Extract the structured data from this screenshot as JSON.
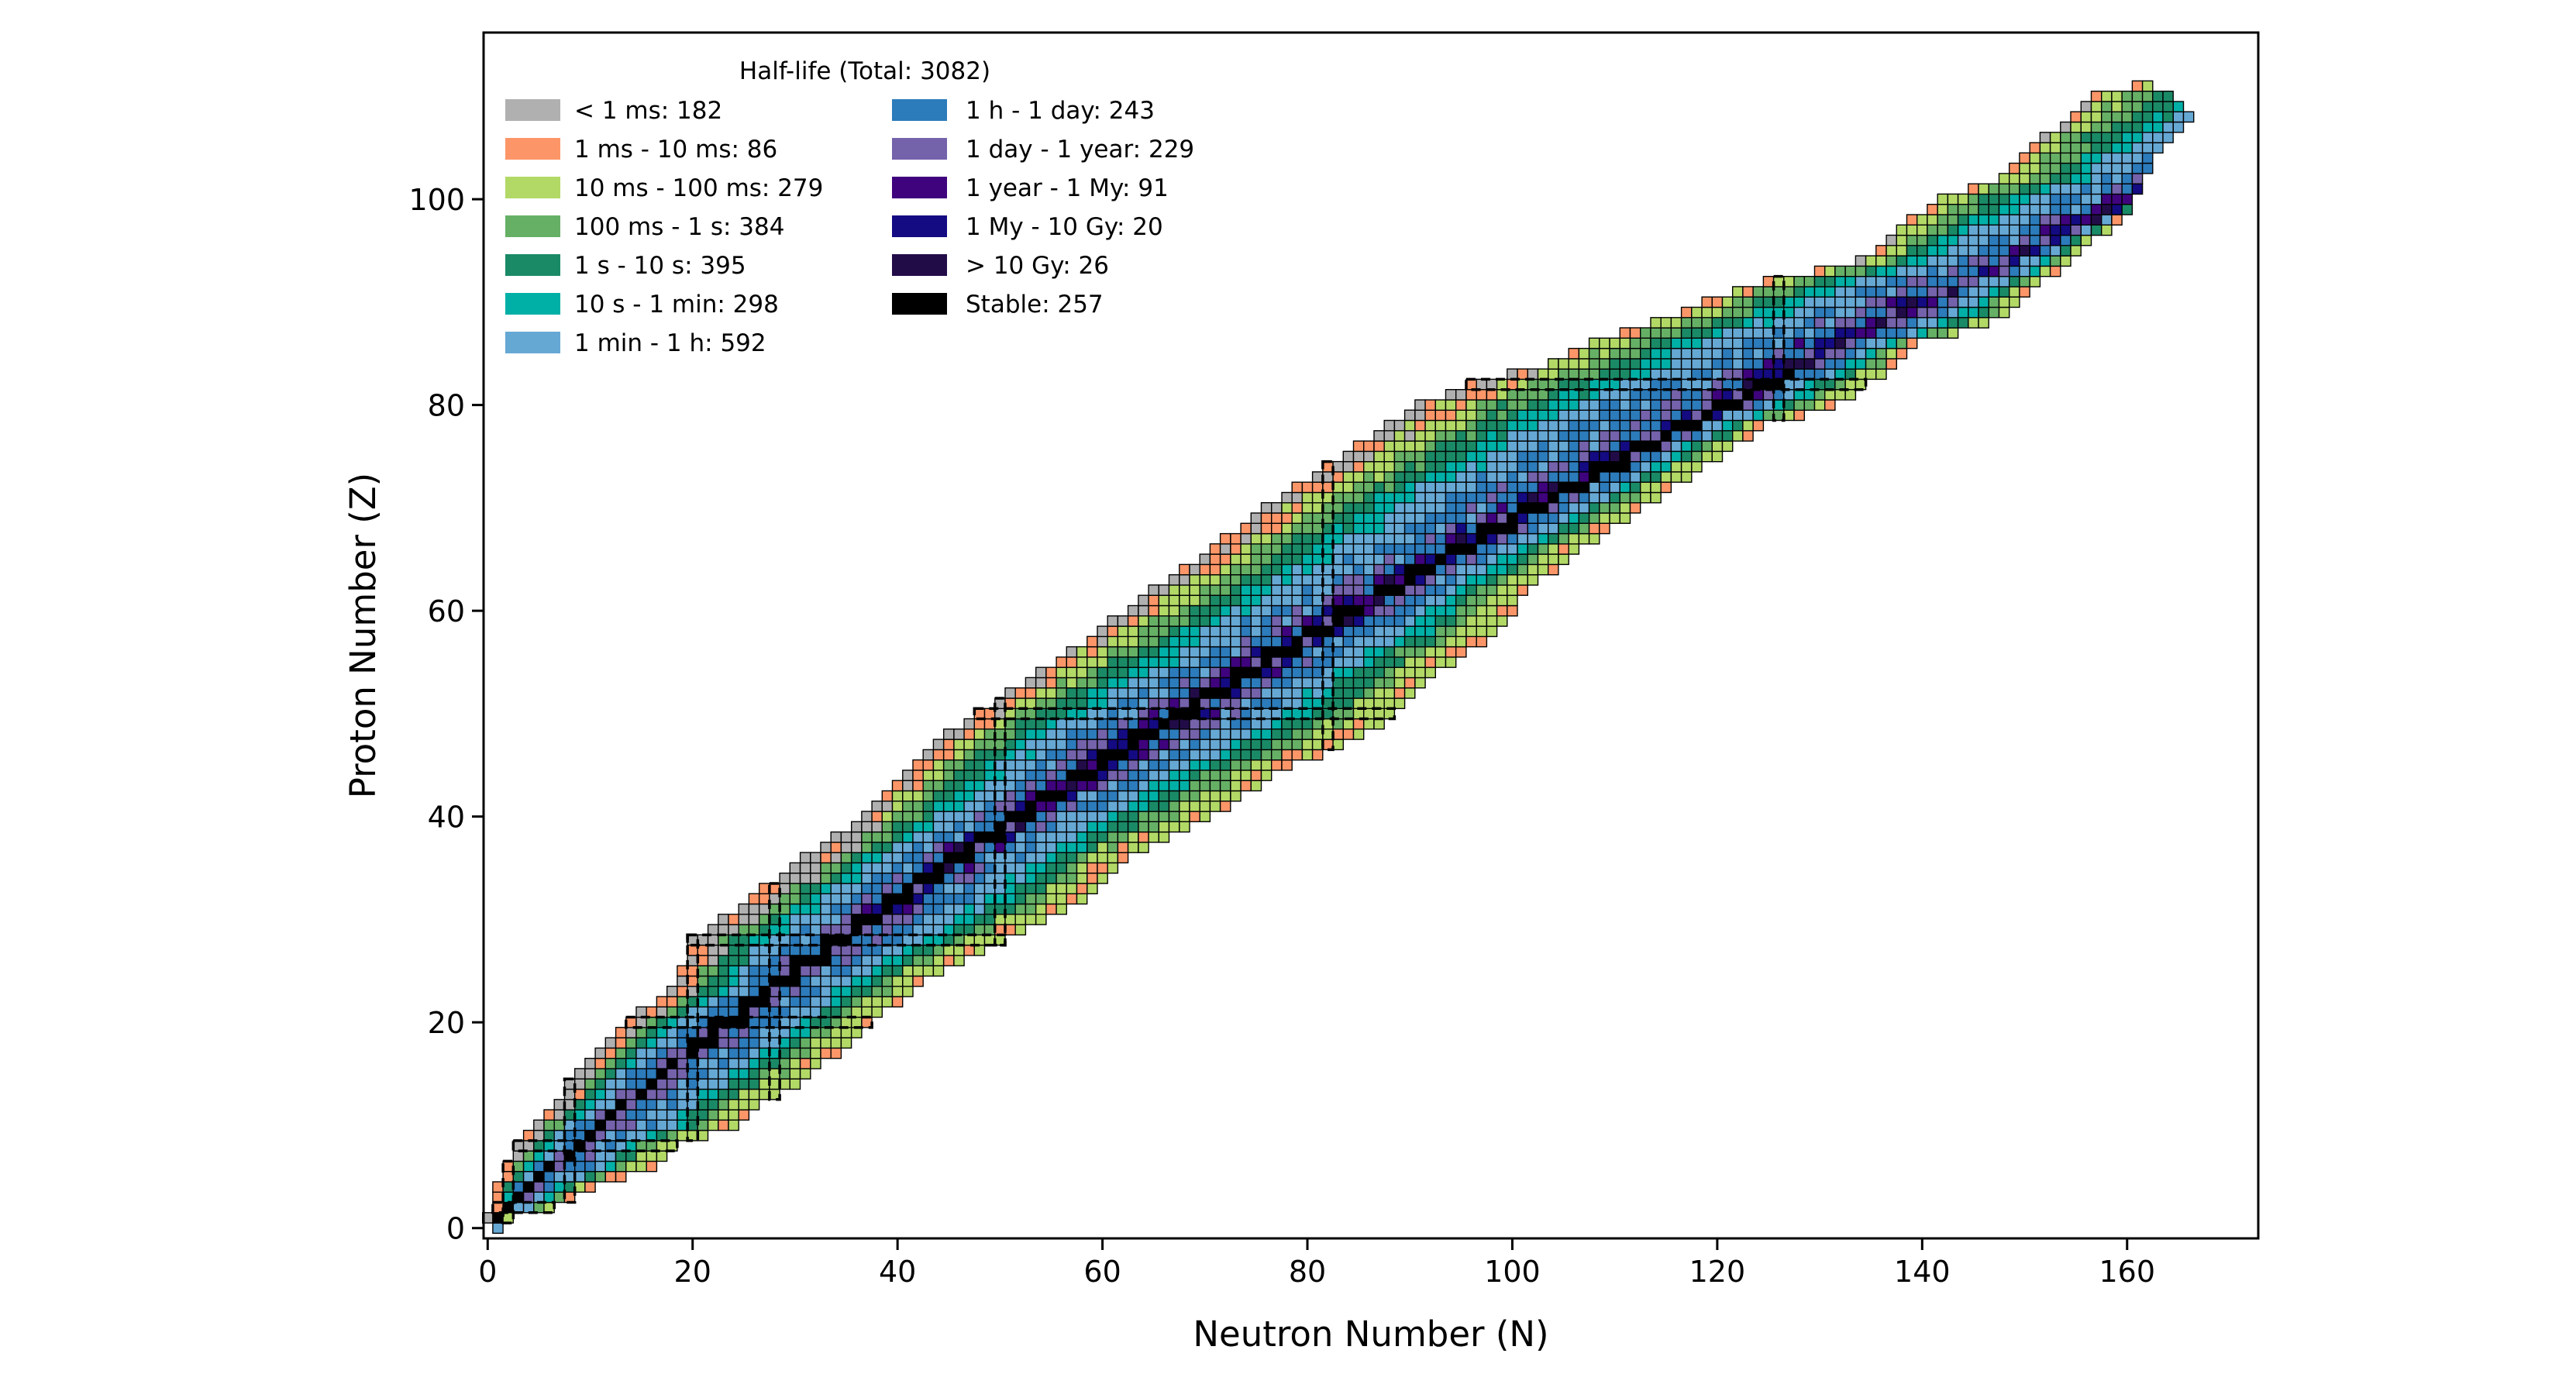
{
  "chart_data": {
    "type": "heatmap",
    "title": "",
    "xlabel": "Neutron Number (N)",
    "ylabel": "Proton Number (Z)",
    "xlim": [
      -0.4,
      172.8
    ],
    "ylim": [
      -1,
      116.2
    ],
    "xticks": [
      0,
      20,
      40,
      60,
      80,
      100,
      120,
      140,
      160
    ],
    "yticks": [
      0,
      20,
      40,
      60,
      80,
      100
    ],
    "xtick_labels": [
      "0",
      "20",
      "40",
      "60",
      "80",
      "100",
      "120",
      "140",
      "160"
    ],
    "ytick_labels": [
      "0",
      "20",
      "40",
      "60",
      "80",
      "100"
    ],
    "legend": {
      "title": "Half-life (Total: 3082)",
      "placement": "top-left",
      "entries": [
        {
          "label": "< 1 ms: 182",
          "color": "#b0b0b0"
        },
        {
          "label": "1 ms - 10 ms: 86",
          "color": "#fc9668"
        },
        {
          "label": "10 ms - 100 ms: 279",
          "color": "#b2d966"
        },
        {
          "label": "100 ms - 1 s: 384",
          "color": "#66b066"
        },
        {
          "label": "1 s - 10 s: 395",
          "color": "#1a8a66"
        },
        {
          "label": "10 s - 1 min: 298",
          "color": "#00b0a6"
        },
        {
          "label": "1 min - 1 h: 592",
          "color": "#66a8d4"
        },
        {
          "label": "1 h - 1 day: 243",
          "color": "#2c7bbb"
        },
        {
          "label": "1 day - 1 year: 229",
          "color": "#7462ab"
        },
        {
          "label": "1 year - 1 My: 91",
          "color": "#3f037d"
        },
        {
          "label": "1 My - 10 Gy: 20",
          "color": "#140a82"
        },
        {
          "label": "> 10 Gy: 26",
          "color": "#220c48"
        },
        {
          "label": "Stable: 257",
          "color": "#000000"
        }
      ]
    },
    "nuclide_region": {
      "note_units": "proton number Z vs neutron number N (data units)",
      "proton_rich_edge": [
        [
          0,
          1
        ],
        [
          1,
          0
        ],
        [
          2,
          1
        ],
        [
          4,
          1
        ],
        [
          5,
          2
        ],
        [
          6,
          2
        ],
        [
          8,
          3
        ],
        [
          10,
          5
        ],
        [
          12,
          7
        ],
        [
          14,
          8
        ],
        [
          16,
          10
        ],
        [
          18,
          12
        ],
        [
          20,
          14
        ],
        [
          24,
          19
        ],
        [
          28,
          20
        ],
        [
          32,
          26
        ],
        [
          36,
          31
        ],
        [
          40,
          37
        ],
        [
          44,
          41
        ],
        [
          48,
          45
        ],
        [
          50,
          48
        ],
        [
          54,
          54
        ],
        [
          58,
          60
        ],
        [
          62,
          65
        ],
        [
          66,
          71
        ],
        [
          70,
          76
        ],
        [
          74,
          82
        ],
        [
          78,
          88
        ],
        [
          80,
          91
        ],
        [
          82,
          96
        ],
        [
          84,
          104
        ],
        [
          86,
          108
        ],
        [
          88,
          114
        ],
        [
          90,
          119
        ],
        [
          92,
          125
        ],
        [
          94,
          134
        ],
        [
          96,
          137
        ],
        [
          98,
          139
        ],
        [
          100,
          142
        ],
        [
          102,
          148
        ],
        [
          104,
          150
        ],
        [
          106,
          152
        ],
        [
          108,
          155
        ],
        [
          110,
          157
        ],
        [
          111,
          161
        ]
      ],
      "neutron_rich_edge": [
        [
          0,
          1
        ],
        [
          1,
          2
        ],
        [
          2,
          6
        ],
        [
          3,
          8
        ],
        [
          4,
          10
        ],
        [
          6,
          16
        ],
        [
          8,
          18
        ],
        [
          10,
          24
        ],
        [
          12,
          26
        ],
        [
          14,
          30
        ],
        [
          16,
          32
        ],
        [
          18,
          35
        ],
        [
          20,
          37
        ],
        [
          24,
          42
        ],
        [
          28,
          50
        ],
        [
          32,
          58
        ],
        [
          36,
          62
        ],
        [
          40,
          70
        ],
        [
          44,
          76
        ],
        [
          48,
          85
        ],
        [
          50,
          88
        ],
        [
          54,
          92
        ],
        [
          58,
          98
        ],
        [
          62,
          101
        ],
        [
          66,
          106
        ],
        [
          70,
          112
        ],
        [
          74,
          118
        ],
        [
          78,
          124
        ],
        [
          80,
          131
        ],
        [
          82,
          134
        ],
        [
          84,
          137
        ],
        [
          86,
          139
        ],
        [
          88,
          146
        ],
        [
          90,
          149
        ],
        [
          92,
          151
        ],
        [
          94,
          154
        ],
        [
          96,
          156
        ],
        [
          98,
          159
        ],
        [
          100,
          160
        ],
        [
          102,
          161
        ],
        [
          104,
          162
        ],
        [
          106,
          164
        ],
        [
          108,
          166
        ],
        [
          110,
          164
        ],
        [
          111,
          162
        ]
      ],
      "max_stable_Z": 83,
      "unstable_elements_below_max": [
        43,
        61
      ],
      "magic_numbers_Z": [
        2,
        8,
        20,
        28,
        50,
        82
      ],
      "magic_numbers_N": [
        2,
        8,
        20,
        28,
        50,
        82,
        126
      ]
    }
  }
}
